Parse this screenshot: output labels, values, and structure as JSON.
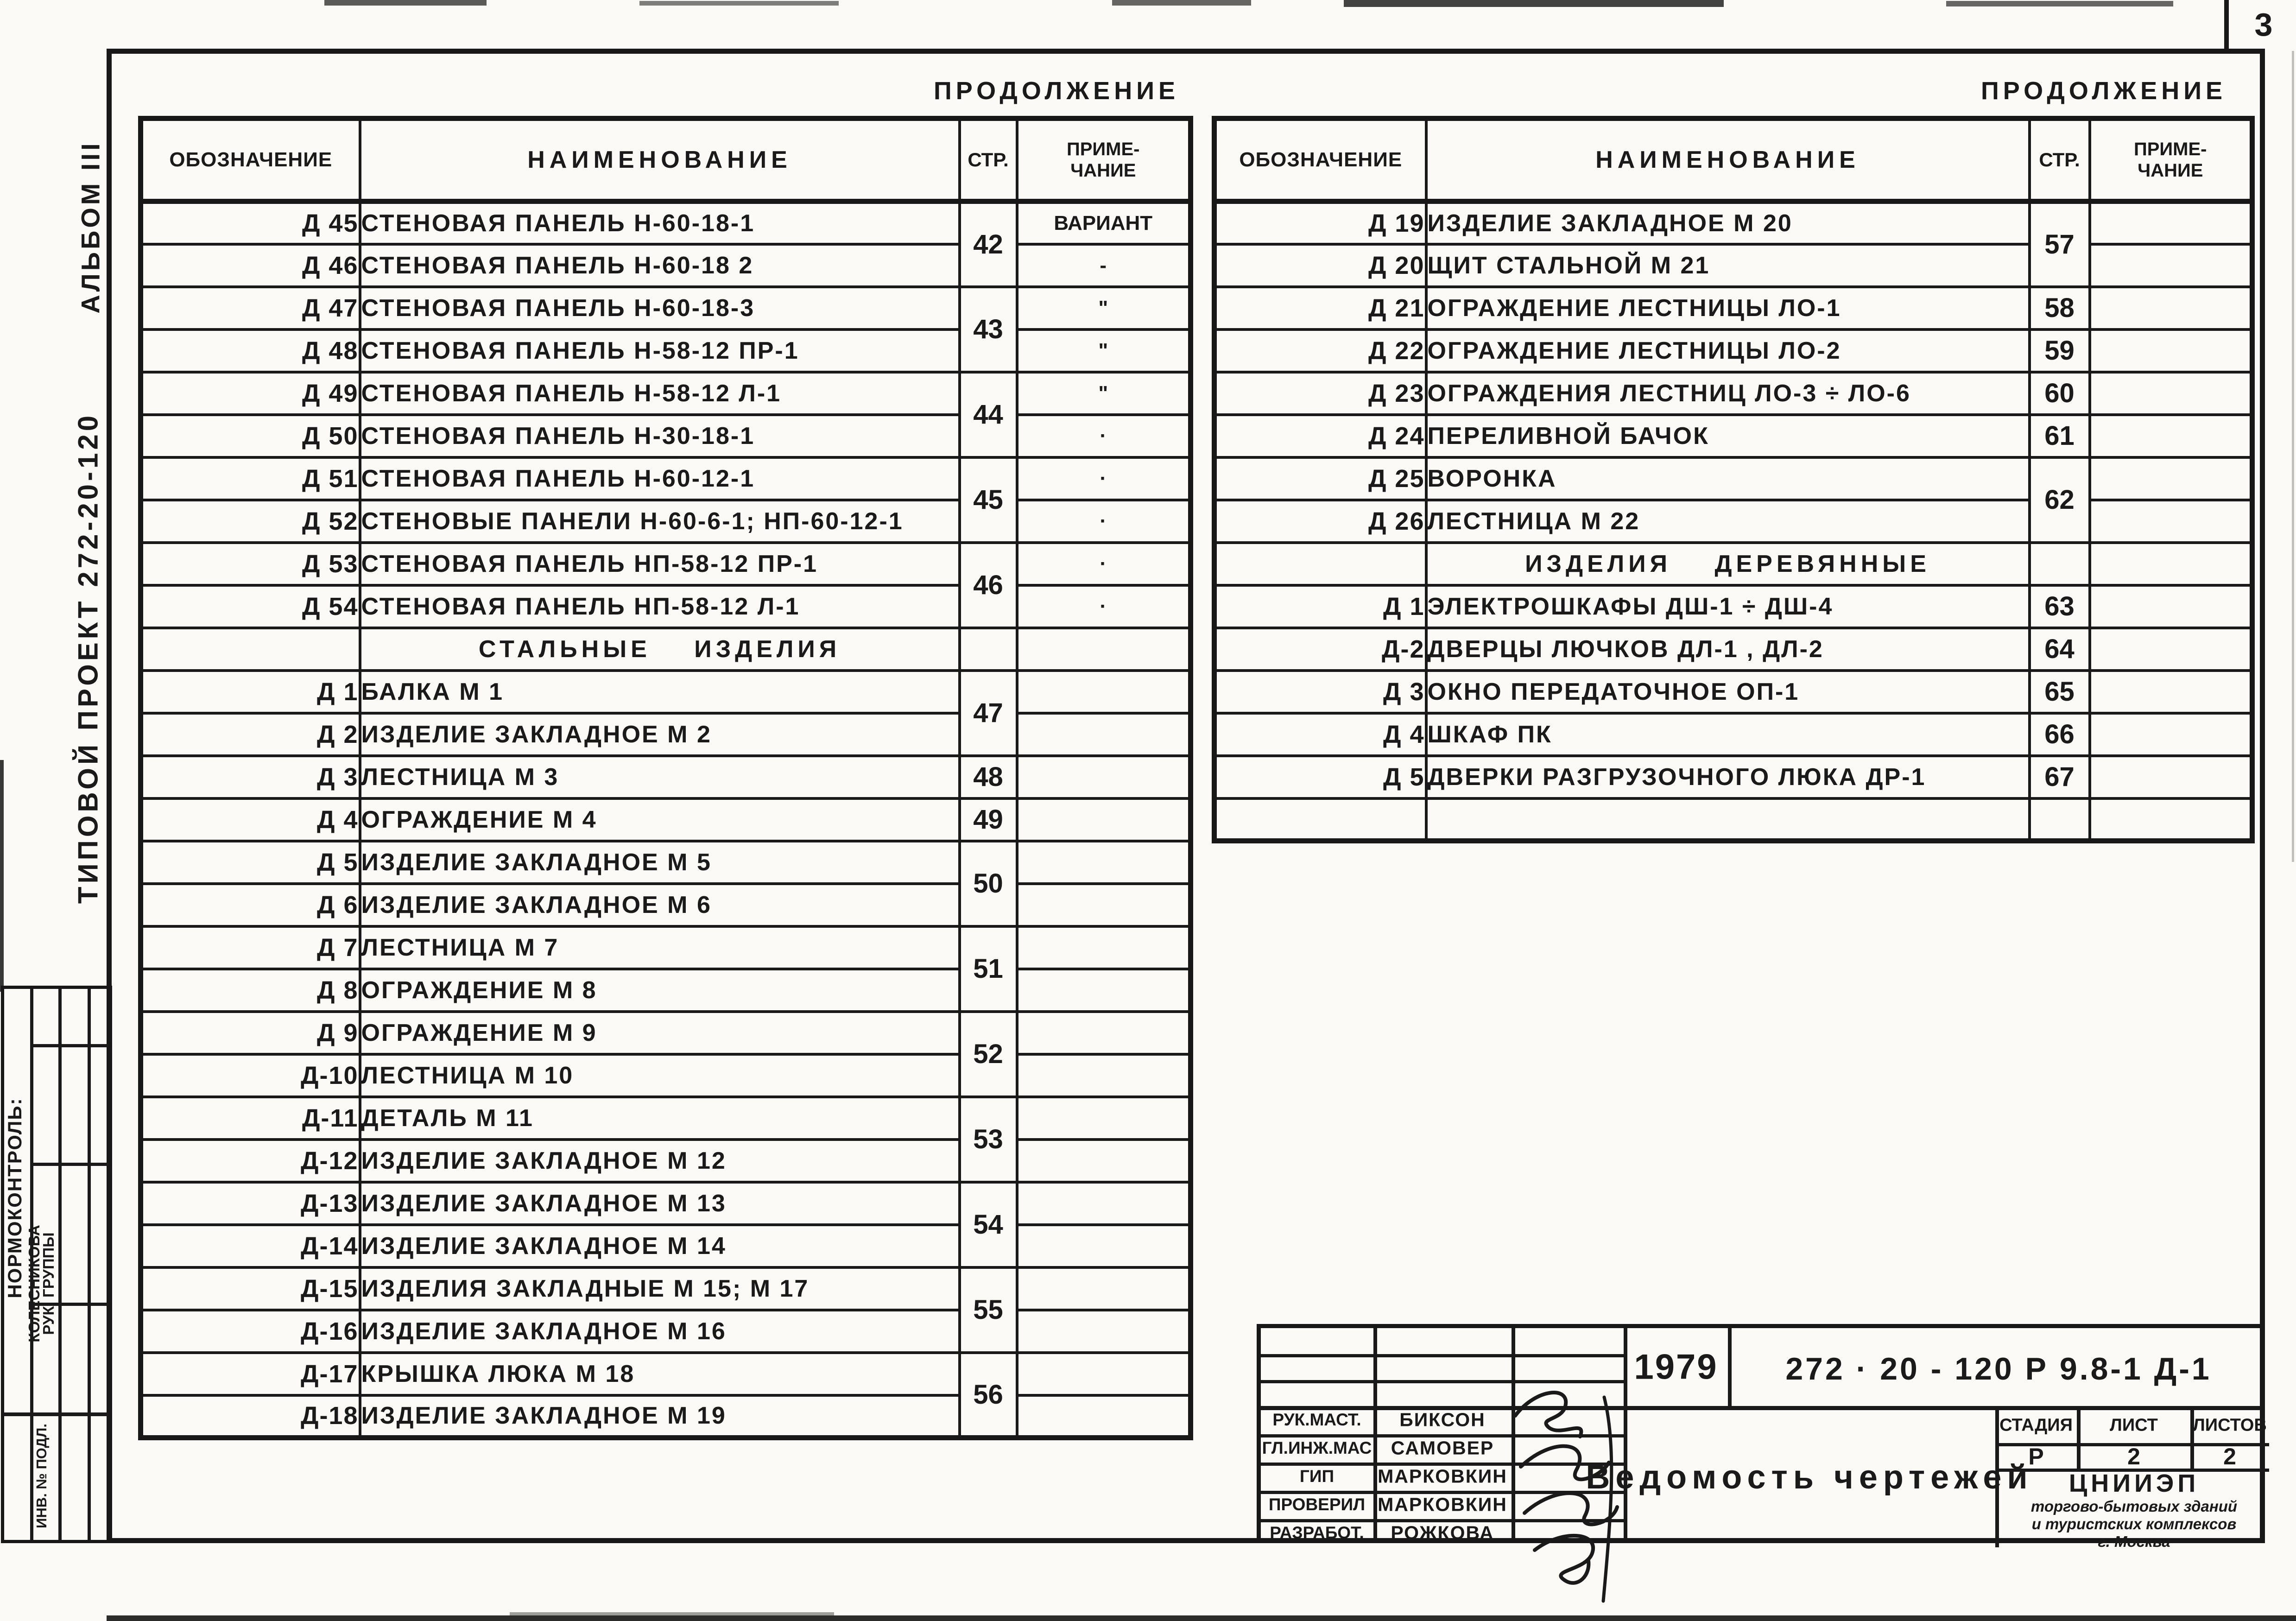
{
  "page": {
    "sheet_number": "3",
    "continuation_left": "ПРОДОЛЖЕНИЕ",
    "continuation_right": "ПРОДОЛЖЕНИЕ"
  },
  "sidebar": {
    "album": "АЛЬБОМ III",
    "project": "ТИПОВОЙ ПРОЕКТ 272-20-120",
    "normcontrol": "НОРМОКОНТРОЛЬ:",
    "group_lead_role": "РУК. ГРУППЫ",
    "group_lead_name": "КОЛЕСНИКОВА",
    "inventory": "ИНВ. № ПОДЛ."
  },
  "table_headers": {
    "designation": "ОБОЗНАЧЕНИЕ",
    "name": "НАИМЕНОВАНИЕ",
    "page": "СТР.",
    "note_line1": "ПРИМЕ-",
    "note_line2": "ЧАНИЕ"
  },
  "left_table": {
    "rows": [
      {
        "d": "Д 45",
        "n": "СТЕНОВАЯ ПАНЕЛЬ Н-60-18-1",
        "p": "42",
        "ps": 2,
        "note": "ВАРИАНТ"
      },
      {
        "d": "Д 46",
        "n": "СТЕНОВАЯ ПАНЕЛЬ Н-60-18 2",
        "note": "-"
      },
      {
        "d": "Д 47",
        "n": "СТЕНОВАЯ ПАНЕЛЬ Н-60-18-3",
        "p": "43",
        "ps": 2,
        "note": "\""
      },
      {
        "d": "Д 48",
        "n": "СТЕНОВАЯ ПАНЕЛЬ Н-58-12 ПР-1",
        "note": "\""
      },
      {
        "d": "Д 49",
        "n": "СТЕНОВАЯ ПАНЕЛЬ Н-58-12 Л-1",
        "p": "44",
        "ps": 2,
        "note": "\""
      },
      {
        "d": "Д 50",
        "n": "СТЕНОВАЯ ПАНЕЛЬ Н-30-18-1",
        "note": "·"
      },
      {
        "d": "Д 51",
        "n": "СТЕНОВАЯ ПАНЕЛЬ Н-60-12-1",
        "p": "45",
        "ps": 2,
        "note": "·"
      },
      {
        "d": "Д 52",
        "n": "СТЕНОВЫЕ ПАНЕЛИ Н-60-6-1; НП-60-12-1",
        "note": "·"
      },
      {
        "d": "Д 53",
        "n": "СТЕНОВАЯ ПАНЕЛЬ НП-58-12 ПР-1",
        "p": "46",
        "ps": 2,
        "note": "·"
      },
      {
        "d": "Д 54",
        "n": "СТЕНОВАЯ ПАНЕЛЬ НП-58-12 Л-1",
        "note": "·"
      },
      {
        "section": "СТАЛЬНЫЕ ИЗДЕЛИЯ"
      },
      {
        "d": "Д 1",
        "n": "БАЛКА М 1",
        "p": "47",
        "ps": 2
      },
      {
        "d": "Д 2",
        "n": "ИЗДЕЛИЕ ЗАКЛАДНОЕ М 2"
      },
      {
        "d": "Д 3",
        "n": "ЛЕСТНИЦА М 3",
        "p": "48",
        "ps": 1
      },
      {
        "d": "Д 4",
        "n": "ОГРАЖДЕНИЕ М 4",
        "p": "49",
        "ps": 1
      },
      {
        "d": "Д 5",
        "n": "ИЗДЕЛИЕ ЗАКЛАДНОЕ М 5",
        "p": "50",
        "ps": 2
      },
      {
        "d": "Д 6",
        "n": "ИЗДЕЛИЕ ЗАКЛАДНОЕ М 6"
      },
      {
        "d": "Д 7",
        "n": "ЛЕСТНИЦА М 7",
        "p": "51",
        "ps": 2
      },
      {
        "d": "Д 8",
        "n": "ОГРАЖДЕНИЕ М 8"
      },
      {
        "d": "Д 9",
        "n": "ОГРАЖДЕНИЕ М 9",
        "p": "52",
        "ps": 2
      },
      {
        "d": "Д-10",
        "n": "ЛЕСТНИЦА М 10"
      },
      {
        "d": "Д-11",
        "n": "ДЕТАЛЬ М 11",
        "p": "53",
        "ps": 2
      },
      {
        "d": "Д-12",
        "n": "ИЗДЕЛИЕ ЗАКЛАДНОЕ М 12"
      },
      {
        "d": "Д-13",
        "n": "ИЗДЕЛИЕ ЗАКЛАДНОЕ М 13",
        "p": "54",
        "ps": 2
      },
      {
        "d": "Д-14",
        "n": "ИЗДЕЛИЕ ЗАКЛАДНОЕ М 14"
      },
      {
        "d": "Д-15",
        "n": "ИЗДЕЛИЯ ЗАКЛАДНЫЕ М 15; М 17",
        "p": "55",
        "ps": 2
      },
      {
        "d": "Д-16",
        "n": "ИЗДЕЛИЕ ЗАКЛАДНОЕ М 16"
      },
      {
        "d": "Д-17",
        "n": "КРЫШКА ЛЮКА М 18",
        "p": "56",
        "ps": 2
      },
      {
        "d": "Д-18",
        "n": "ИЗДЕЛИЕ ЗАКЛАДНОЕ М 19"
      }
    ]
  },
  "right_table": {
    "rows": [
      {
        "d": "Д 19",
        "n": "ИЗДЕЛИЕ ЗАКЛАДНОЕ М 20",
        "p": "57",
        "ps": 2
      },
      {
        "d": "Д 20",
        "n": "ЩИТ СТАЛЬНОЙ М 21"
      },
      {
        "d": "Д 21",
        "n": "ОГРАЖДЕНИЕ ЛЕСТНИЦЫ ЛО-1",
        "p": "58",
        "ps": 1
      },
      {
        "d": "Д 22",
        "n": "ОГРАЖДЕНИЕ ЛЕСТНИЦЫ ЛО-2",
        "p": "59",
        "ps": 1
      },
      {
        "d": "Д 23",
        "n": "ОГРАЖДЕНИЯ ЛЕСТНИЦ ЛО-3 ÷ ЛО-6",
        "p": "60",
        "ps": 1
      },
      {
        "d": "Д 24",
        "n": "ПЕРЕЛИВНОЙ БАЧОК",
        "p": "61",
        "ps": 1
      },
      {
        "d": "Д 25",
        "n": "ВОРОНКА",
        "p": "62",
        "ps": 2
      },
      {
        "d": "Д 26",
        "n": "ЛЕСТНИЦА М 22"
      },
      {
        "section": "ИЗДЕЛИЯ ДЕРЕВЯННЫЕ"
      },
      {
        "d": "Д 1",
        "n": "ЭЛЕКТРОШКАФЫ ДШ-1 ÷ ДШ-4",
        "p": "63",
        "ps": 1
      },
      {
        "d": "Д-2",
        "n": "ДВЕРЦЫ ЛЮЧКОВ ДЛ-1 , ДЛ-2",
        "p": "64",
        "ps": 1
      },
      {
        "d": "Д 3",
        "n": "ОКНО ПЕРЕДАТОЧНОЕ ОП-1",
        "p": "65",
        "ps": 1
      },
      {
        "d": "Д 4",
        "n": "ШКАФ ПК",
        "p": "66",
        "ps": 1
      },
      {
        "d": "Д 5",
        "n": "ДВЕРКИ РАЗГРУЗОЧНОГО ЛЮКА ДР-1",
        "p": "67",
        "ps": 1
      },
      {
        "empty": true
      }
    ]
  },
  "titleblock": {
    "year": "1979",
    "doc_number": "272 · 20 - 120    Р 9.8-1    Д-1",
    "title": "Ведомость  чертежей",
    "roles": [
      {
        "role": "РУК.МАСТ.",
        "name": "БИКСОН"
      },
      {
        "role": "ГЛ.ИНЖ.МАС",
        "name": "САМОВЕР"
      },
      {
        "role": "ГИП",
        "name": "МАРКОВКИН"
      },
      {
        "role": "ПРОВЕРИЛ",
        "name": "МАРКОВКИН"
      },
      {
        "role": "РАЗРАБОТ.",
        "name": "РОЖКОВА"
      }
    ],
    "stage_label": "СТАДИЯ",
    "sheet_label": "ЛИСТ",
    "sheets_label": "ЛИСТОВ",
    "stage_value": "Р",
    "sheet_value": "2",
    "sheets_value": "2",
    "org_name": "ЦНИИЭП",
    "org_line2": "торгово-бытовых зданий",
    "org_line3": "и туристских комплексов",
    "org_line4": "г. Москва"
  }
}
